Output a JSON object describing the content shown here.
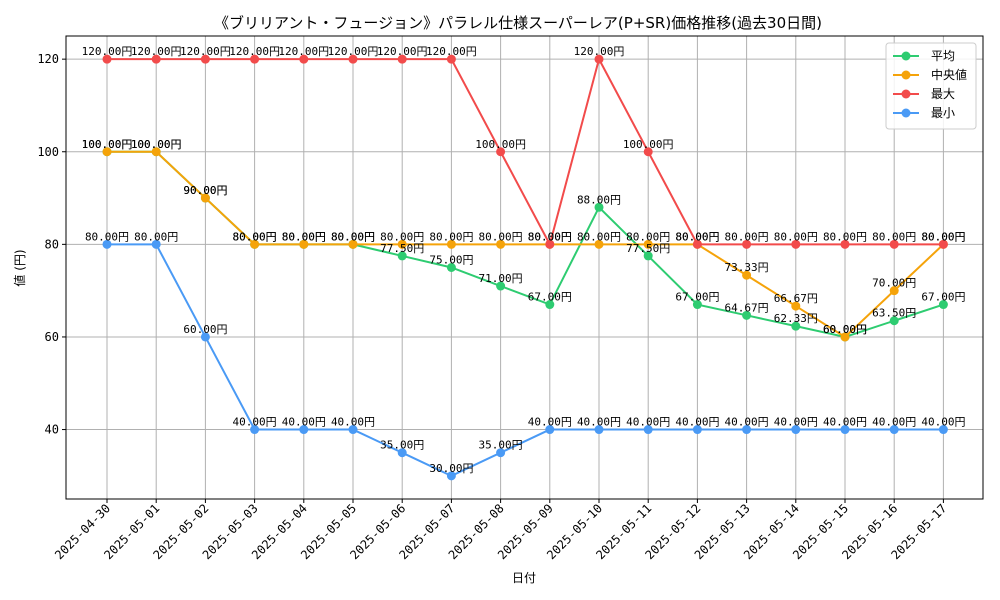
{
  "chart_data": {
    "type": "line",
    "title": "《ブリリアント・フュージョン》パラレル仕様スーパーレア(P+SR)価格推移(過去30日間)",
    "xlabel": "日付",
    "ylabel": "値 (円)",
    "ylim": [
      25,
      125
    ],
    "yticks": [
      40,
      60,
      80,
      100,
      120
    ],
    "grid": true,
    "legend_position": "top-right",
    "label_suffix": "円",
    "categories": [
      "2025-04-30",
      "2025-05-01",
      "2025-05-02",
      "2025-05-03",
      "2025-05-04",
      "2025-05-05",
      "2025-05-06",
      "2025-05-07",
      "2025-05-08",
      "2025-05-09",
      "2025-05-10",
      "2025-05-11",
      "2025-05-12",
      "2025-05-13",
      "2025-05-14",
      "2025-05-15",
      "2025-05-16",
      "2025-05-17"
    ],
    "series": [
      {
        "name": "平均",
        "color": "#2ecc71",
        "values": [
          100,
          100,
          90,
          80,
          80,
          80,
          77.5,
          75,
          71,
          67,
          88,
          77.5,
          67,
          64.67,
          62.33,
          60,
          63.5,
          67
        ]
      },
      {
        "name": "中央値",
        "color": "#f5a30a",
        "values": [
          100,
          100,
          90,
          80,
          80,
          80,
          80,
          80,
          80,
          80,
          80,
          80,
          80,
          73.33,
          66.67,
          60,
          70,
          80
        ]
      },
      {
        "name": "最大",
        "color": "#f24b4b",
        "values": [
          120,
          120,
          120,
          120,
          120,
          120,
          120,
          120,
          100,
          80,
          120,
          100,
          80,
          80,
          80,
          80,
          80,
          80
        ]
      },
      {
        "name": "最小",
        "color": "#4a9af5",
        "values": [
          80,
          80,
          60,
          40,
          40,
          40,
          35,
          30,
          35,
          40,
          40,
          40,
          40,
          40,
          40,
          40,
          40,
          40
        ]
      }
    ]
  }
}
